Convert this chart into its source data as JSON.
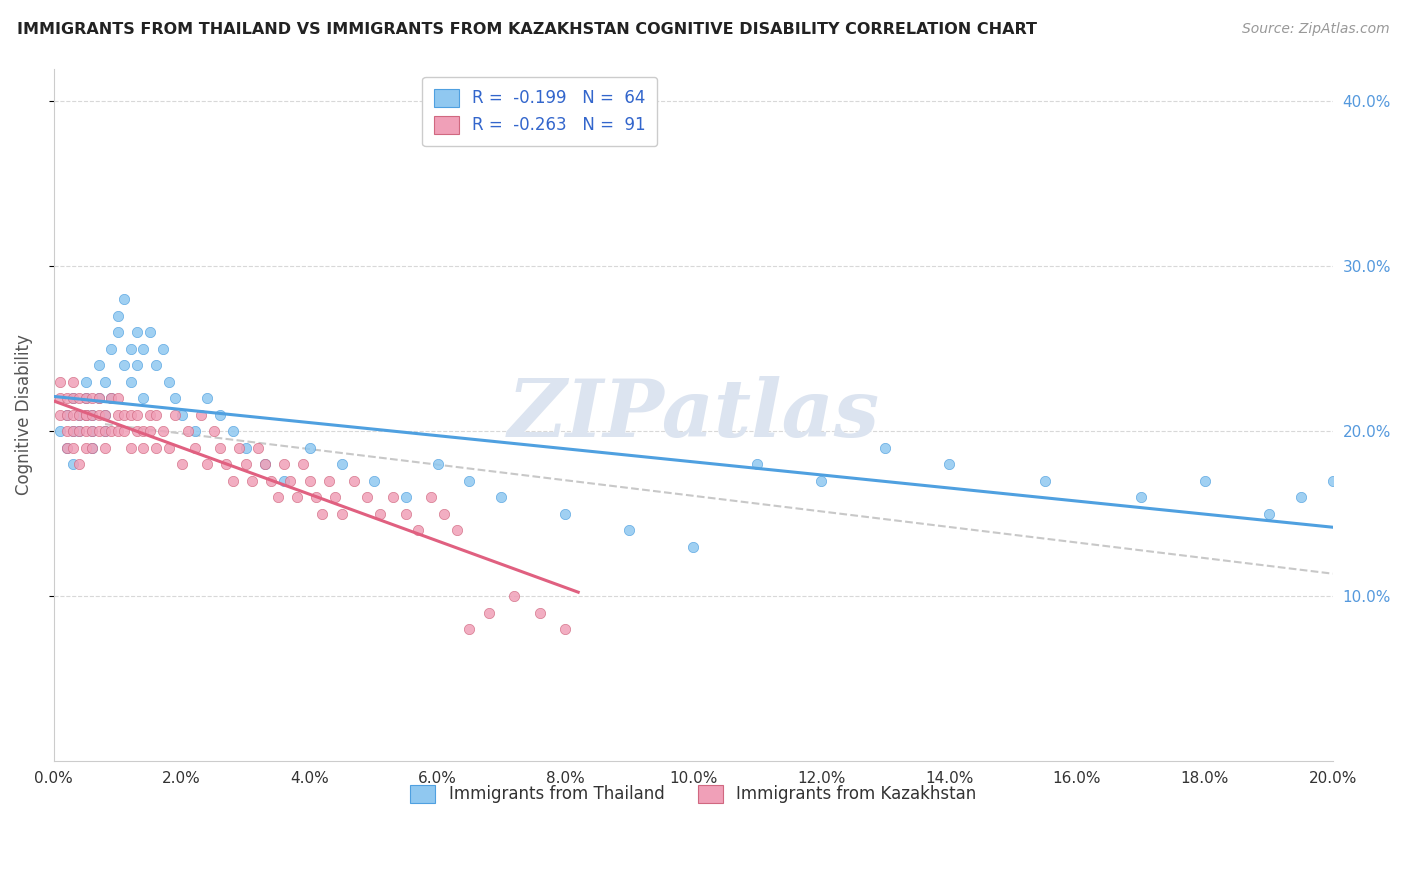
{
  "title": "IMMIGRANTS FROM THAILAND VS IMMIGRANTS FROM KAZAKHSTAN COGNITIVE DISABILITY CORRELATION CHART",
  "source": "Source: ZipAtlas.com",
  "ylabel": "Cognitive Disability",
  "legend_thailand": "R =  -0.199   N =  64",
  "legend_kazakhstan": "R =  -0.263   N =  91",
  "legend_label_thailand": "Immigrants from Thailand",
  "legend_label_kazakhstan": "Immigrants from Kazakhstan",
  "color_thailand": "#90c8f0",
  "color_kazakhstan": "#f0a0b8",
  "color_trendline_thailand": "#4fa0e0",
  "color_trendline_kazakhstan": "#e06080",
  "color_dashed": "#c8c8c8",
  "color_grid": "#d8d8d8",
  "background_color": "#ffffff",
  "thailand_x": [
    0.001,
    0.002,
    0.002,
    0.003,
    0.003,
    0.003,
    0.004,
    0.004,
    0.005,
    0.005,
    0.005,
    0.006,
    0.006,
    0.006,
    0.007,
    0.007,
    0.008,
    0.008,
    0.008,
    0.009,
    0.009,
    0.01,
    0.01,
    0.011,
    0.011,
    0.012,
    0.012,
    0.013,
    0.013,
    0.014,
    0.014,
    0.015,
    0.016,
    0.017,
    0.018,
    0.019,
    0.02,
    0.022,
    0.024,
    0.026,
    0.028,
    0.03,
    0.033,
    0.036,
    0.04,
    0.045,
    0.05,
    0.055,
    0.06,
    0.065,
    0.07,
    0.08,
    0.09,
    0.1,
    0.11,
    0.12,
    0.13,
    0.14,
    0.155,
    0.17,
    0.18,
    0.19,
    0.195,
    0.2
  ],
  "thailand_y": [
    0.2,
    0.21,
    0.19,
    0.22,
    0.2,
    0.18,
    0.21,
    0.2,
    0.22,
    0.21,
    0.23,
    0.2,
    0.19,
    0.21,
    0.24,
    0.22,
    0.23,
    0.21,
    0.2,
    0.22,
    0.25,
    0.27,
    0.26,
    0.24,
    0.28,
    0.25,
    0.23,
    0.26,
    0.24,
    0.22,
    0.25,
    0.26,
    0.24,
    0.25,
    0.23,
    0.22,
    0.21,
    0.2,
    0.22,
    0.21,
    0.2,
    0.19,
    0.18,
    0.17,
    0.19,
    0.18,
    0.17,
    0.16,
    0.18,
    0.17,
    0.16,
    0.15,
    0.14,
    0.13,
    0.18,
    0.17,
    0.19,
    0.18,
    0.17,
    0.16,
    0.17,
    0.15,
    0.16,
    0.17
  ],
  "kazakhstan_x": [
    0.001,
    0.001,
    0.001,
    0.002,
    0.002,
    0.002,
    0.002,
    0.003,
    0.003,
    0.003,
    0.003,
    0.003,
    0.004,
    0.004,
    0.004,
    0.004,
    0.005,
    0.005,
    0.005,
    0.005,
    0.005,
    0.006,
    0.006,
    0.006,
    0.006,
    0.007,
    0.007,
    0.007,
    0.008,
    0.008,
    0.008,
    0.009,
    0.009,
    0.01,
    0.01,
    0.01,
    0.011,
    0.011,
    0.012,
    0.012,
    0.013,
    0.013,
    0.014,
    0.014,
    0.015,
    0.015,
    0.016,
    0.016,
    0.017,
    0.018,
    0.019,
    0.02,
    0.021,
    0.022,
    0.023,
    0.024,
    0.025,
    0.026,
    0.027,
    0.028,
    0.029,
    0.03,
    0.031,
    0.032,
    0.033,
    0.034,
    0.035,
    0.036,
    0.037,
    0.038,
    0.039,
    0.04,
    0.041,
    0.042,
    0.043,
    0.044,
    0.045,
    0.047,
    0.049,
    0.051,
    0.053,
    0.055,
    0.057,
    0.059,
    0.061,
    0.063,
    0.065,
    0.068,
    0.072,
    0.076,
    0.08
  ],
  "kazakhstan_y": [
    0.22,
    0.21,
    0.23,
    0.2,
    0.22,
    0.21,
    0.19,
    0.2,
    0.21,
    0.22,
    0.19,
    0.23,
    0.2,
    0.21,
    0.22,
    0.18,
    0.21,
    0.2,
    0.22,
    0.19,
    0.21,
    0.22,
    0.2,
    0.21,
    0.19,
    0.2,
    0.22,
    0.21,
    0.2,
    0.21,
    0.19,
    0.22,
    0.2,
    0.21,
    0.2,
    0.22,
    0.21,
    0.2,
    0.19,
    0.21,
    0.2,
    0.21,
    0.19,
    0.2,
    0.21,
    0.2,
    0.19,
    0.21,
    0.2,
    0.19,
    0.21,
    0.18,
    0.2,
    0.19,
    0.21,
    0.18,
    0.2,
    0.19,
    0.18,
    0.17,
    0.19,
    0.18,
    0.17,
    0.19,
    0.18,
    0.17,
    0.16,
    0.18,
    0.17,
    0.16,
    0.18,
    0.17,
    0.16,
    0.15,
    0.17,
    0.16,
    0.15,
    0.17,
    0.16,
    0.15,
    0.16,
    0.15,
    0.14,
    0.16,
    0.15,
    0.14,
    0.08,
    0.09,
    0.1,
    0.09,
    0.08
  ],
  "xlim": [
    0.0,
    0.2
  ],
  "ylim": [
    0.0,
    0.42
  ],
  "ytick_vals": [
    0.1,
    0.2,
    0.3,
    0.4
  ],
  "xtick_count": 11,
  "watermark": "ZIPatlas",
  "watermark_color": "#dce4f0"
}
